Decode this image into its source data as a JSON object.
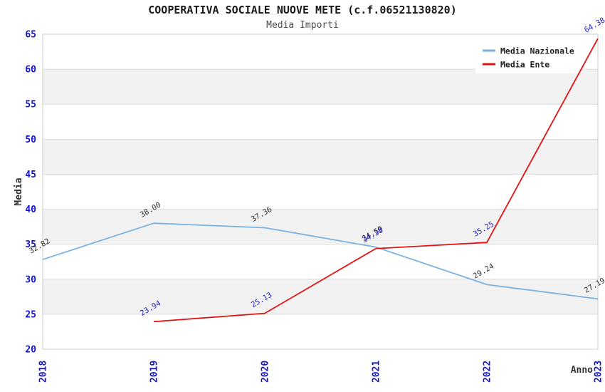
{
  "chart_data": {
    "type": "line",
    "title": "COOPERATIVA SOCIALE NUOVE METE (c.f.06521130820)",
    "subtitle": "Media Importi",
    "xlabel": "Anno",
    "ylabel": "Media",
    "categories": [
      "2018",
      "2019",
      "2020",
      "2021",
      "2022",
      "2023"
    ],
    "series": [
      {
        "name": "Media Nazionale",
        "color": "#7AB2E2",
        "label_color": "#333333",
        "values": [
          32.82,
          38.0,
          37.36,
          34.59,
          29.24,
          27.19
        ]
      },
      {
        "name": "Media Ente",
        "color": "#E21414",
        "label_color": "#2525BE",
        "values": [
          null,
          23.94,
          25.13,
          34.38,
          35.25,
          64.38
        ]
      }
    ],
    "ylim": [
      20,
      65
    ],
    "ytick_step": 5,
    "yticks": [
      20,
      25,
      30,
      35,
      40,
      45,
      50,
      55,
      60,
      65
    ],
    "grid": true,
    "legend_position": "top-right",
    "tick_color": "#1414CC",
    "grid_color": "#DCDCDC",
    "band_color": "#F2F2F2",
    "border_color": "#CCCCCC"
  }
}
